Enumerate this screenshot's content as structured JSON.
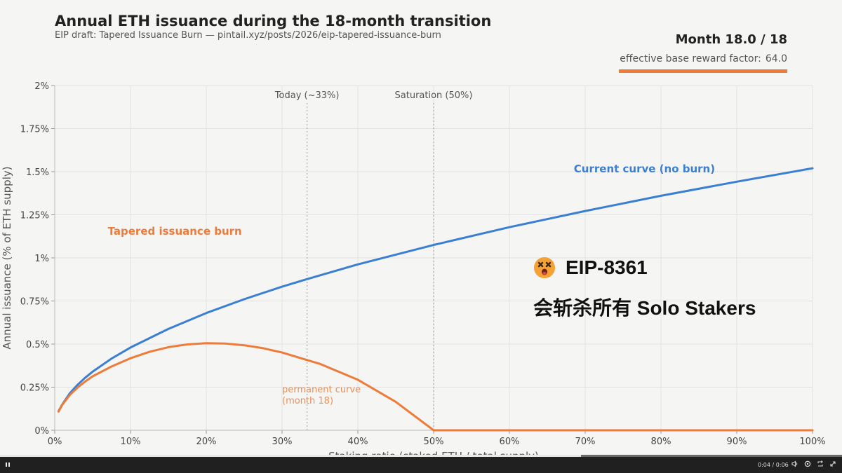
{
  "header": {
    "title": "Annual ETH issuance during the 18-month transition",
    "subtitle": "EIP draft: Tapered Issuance Burn — pintail.xyz/posts/2026/eip-tapered-issuance-burn",
    "month_label": "Month 18.0 / 18",
    "factor_label": "effective base reward factor:",
    "factor_value": "64.0"
  },
  "overlay": {
    "icon": "dizzy-face-emoji",
    "line1": "EIP-8361",
    "line2": "会斩杀所有 Solo Stakers"
  },
  "colors": {
    "current_curve": "#3a7fd1",
    "burn_curve": "#ee7b3a",
    "background": "#f5f5f3",
    "grid": "#e2e2e2"
  },
  "chart_data": {
    "type": "line",
    "title": "Annual ETH issuance during the 18-month transition",
    "xlabel": "Staking ratio (staked ETH / total supply)",
    "ylabel": "Annual issuance (% of ETH supply)",
    "xlim": [
      0,
      100
    ],
    "ylim": [
      0,
      2
    ],
    "grid": true,
    "x_ticks": [
      "0%",
      "10%",
      "20%",
      "30%",
      "40%",
      "50%",
      "60%",
      "70%",
      "80%",
      "90%",
      "100%"
    ],
    "y_ticks": [
      "0%",
      "0.25%",
      "0.5%",
      "0.75%",
      "1%",
      "1.25%",
      "1.5%",
      "1.75%",
      "2%"
    ],
    "series": [
      {
        "name": "Current curve (no burn)",
        "color": "#3a7fd1",
        "x": [
          0.5,
          1,
          2,
          3,
          4,
          5,
          7.5,
          10,
          15,
          20,
          25,
          30,
          33.3,
          40,
          50,
          60,
          70,
          80,
          90,
          100
        ],
        "values": [
          0.11,
          0.15,
          0.215,
          0.263,
          0.304,
          0.34,
          0.416,
          0.48,
          0.588,
          0.68,
          0.76,
          0.833,
          0.877,
          0.962,
          1.075,
          1.178,
          1.272,
          1.36,
          1.442,
          1.52
        ]
      },
      {
        "name": "Tapered issuance burn",
        "color": "#ee7b3a",
        "x": [
          0.5,
          1,
          2,
          3,
          4,
          5,
          7.5,
          10,
          12.5,
          15,
          17.5,
          20,
          22.5,
          25,
          27.5,
          30,
          35,
          40,
          45,
          50,
          60,
          70,
          80,
          90,
          100
        ],
        "values": [
          0.108,
          0.148,
          0.205,
          0.247,
          0.282,
          0.313,
          0.37,
          0.418,
          0.455,
          0.482,
          0.498,
          0.505,
          0.503,
          0.493,
          0.476,
          0.451,
          0.385,
          0.293,
          0.165,
          0.0,
          0.0,
          0.0,
          0.0,
          0.0,
          0.0
        ]
      }
    ],
    "vlines": [
      {
        "x": 33.3,
        "label": "Today (~33%)"
      },
      {
        "x": 50,
        "label": "Saturation (50%)"
      }
    ],
    "annotations": [
      {
        "text": "Current curve (no burn)",
        "x": 68.5,
        "y": 1.495,
        "series": 0,
        "bold": true
      },
      {
        "text": "Tapered issuance burn",
        "x": 7,
        "y": 1.135,
        "series": 1,
        "bold": true
      },
      {
        "text": "permanent curve",
        "x": 30,
        "y": 0.22,
        "series": 1,
        "bold": false
      },
      {
        "text": "(month 18)",
        "x": 30,
        "y": 0.155,
        "series": 1,
        "bold": false
      }
    ]
  },
  "video": {
    "time": "0:04 / 0:06",
    "progress": 0.69
  }
}
